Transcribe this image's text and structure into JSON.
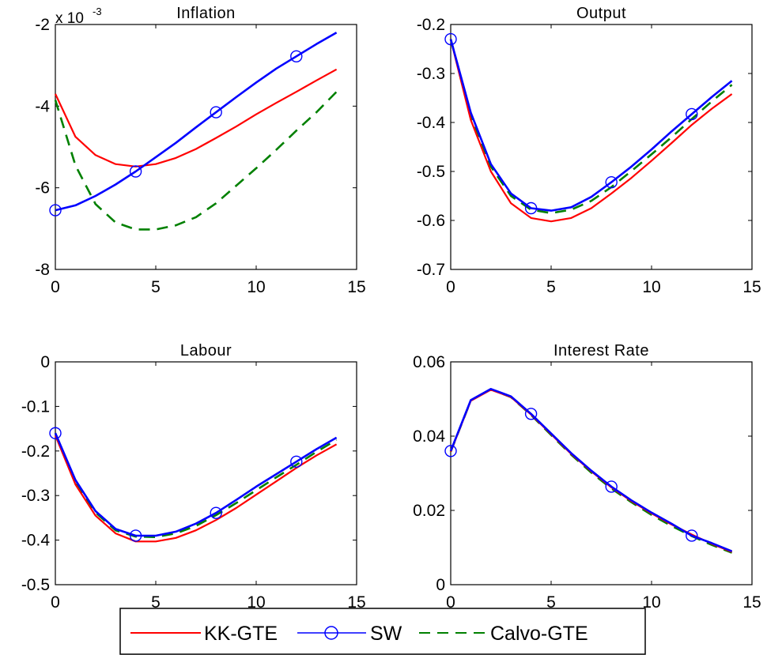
{
  "chart_data": [
    {
      "type": "line",
      "title": "Inflation",
      "exponent_label": {
        "base": "x 10",
        "power": "-3"
      },
      "xlim": [
        0,
        15
      ],
      "ylim": [
        -8,
        -2
      ],
      "xticks": [
        0,
        5,
        10,
        15
      ],
      "yticks": [
        -2,
        -4,
        -6,
        -8
      ],
      "x": [
        0,
        1,
        2,
        3,
        4,
        5,
        6,
        7,
        8,
        9,
        10,
        11,
        12,
        13,
        14
      ],
      "series": [
        {
          "name": "KK-GTE",
          "values": [
            -3.7,
            -4.75,
            -5.2,
            -5.42,
            -5.48,
            -5.42,
            -5.27,
            -5.05,
            -4.78,
            -4.5,
            -4.2,
            -3.92,
            -3.65,
            -3.37,
            -3.1
          ]
        },
        {
          "name": "SW",
          "values": [
            -6.55,
            -6.43,
            -6.2,
            -5.92,
            -5.6,
            -5.25,
            -4.9,
            -4.52,
            -4.15,
            -3.78,
            -3.42,
            -3.08,
            -2.78,
            -2.48,
            -2.2
          ]
        },
        {
          "name": "Calvo-GTE",
          "values": [
            -3.85,
            -5.45,
            -6.4,
            -6.85,
            -7.02,
            -7.02,
            -6.92,
            -6.72,
            -6.38,
            -5.95,
            -5.52,
            -5.07,
            -4.6,
            -4.15,
            -3.65
          ]
        }
      ]
    },
    {
      "type": "line",
      "title": "Output",
      "xlim": [
        0,
        15
      ],
      "ylim": [
        -0.7,
        -0.2
      ],
      "xticks": [
        0,
        5,
        10,
        15
      ],
      "yticks": [
        -0.2,
        -0.3,
        -0.4,
        -0.5,
        -0.6,
        -0.7
      ],
      "x": [
        0,
        1,
        2,
        3,
        4,
        5,
        6,
        7,
        8,
        9,
        10,
        11,
        12,
        13,
        14
      ],
      "series": [
        {
          "name": "KK-GTE",
          "values": [
            -0.23,
            -0.395,
            -0.5,
            -0.565,
            -0.595,
            -0.602,
            -0.595,
            -0.575,
            -0.545,
            -0.513,
            -0.478,
            -0.442,
            -0.405,
            -0.372,
            -0.342
          ]
        },
        {
          "name": "SW",
          "values": [
            -0.23,
            -0.38,
            -0.485,
            -0.545,
            -0.575,
            -0.58,
            -0.573,
            -0.552,
            -0.522,
            -0.49,
            -0.455,
            -0.418,
            -0.383,
            -0.348,
            -0.315
          ]
        },
        {
          "name": "Calvo-GTE",
          "values": [
            -0.23,
            -0.385,
            -0.49,
            -0.55,
            -0.578,
            -0.585,
            -0.578,
            -0.56,
            -0.532,
            -0.499,
            -0.465,
            -0.43,
            -0.393,
            -0.357,
            -0.323
          ]
        }
      ]
    },
    {
      "type": "line",
      "title": "Labour",
      "xlim": [
        0,
        15
      ],
      "ylim": [
        -0.5,
        0
      ],
      "xticks": [
        0,
        5,
        10,
        15
      ],
      "yticks": [
        0,
        -0.1,
        -0.2,
        -0.3,
        -0.4,
        -0.5
      ],
      "x": [
        0,
        1,
        2,
        3,
        4,
        5,
        6,
        7,
        8,
        9,
        10,
        11,
        12,
        13,
        14
      ],
      "series": [
        {
          "name": "KK-GTE",
          "values": [
            -0.165,
            -0.275,
            -0.345,
            -0.385,
            -0.403,
            -0.403,
            -0.395,
            -0.378,
            -0.355,
            -0.328,
            -0.298,
            -0.268,
            -0.238,
            -0.21,
            -0.185
          ]
        },
        {
          "name": "SW",
          "values": [
            -0.16,
            -0.265,
            -0.335,
            -0.375,
            -0.39,
            -0.39,
            -0.381,
            -0.363,
            -0.339,
            -0.31,
            -0.28,
            -0.252,
            -0.224,
            -0.196,
            -0.17
          ]
        },
        {
          "name": "Calvo-GTE",
          "values": [
            -0.16,
            -0.268,
            -0.338,
            -0.378,
            -0.392,
            -0.393,
            -0.385,
            -0.368,
            -0.344,
            -0.317,
            -0.288,
            -0.259,
            -0.231,
            -0.202,
            -0.175
          ]
        }
      ]
    },
    {
      "type": "line",
      "title": "Interest Rate",
      "xlim": [
        0,
        15
      ],
      "ylim": [
        0,
        0.06
      ],
      "xticks": [
        0,
        5,
        10,
        15
      ],
      "yticks": [
        0,
        0.02,
        0.04,
        0.06
      ],
      "x": [
        0,
        1,
        2,
        3,
        4,
        5,
        6,
        7,
        8,
        9,
        10,
        11,
        12,
        13,
        14
      ],
      "series": [
        {
          "name": "KK-GTE",
          "values": [
            0.0358,
            0.0495,
            0.0525,
            0.0505,
            0.0458,
            0.0405,
            0.0352,
            0.0305,
            0.0262,
            0.0225,
            0.0192,
            0.0162,
            0.0135,
            0.011,
            0.0088
          ]
        },
        {
          "name": "SW",
          "values": [
            0.036,
            0.0497,
            0.0527,
            0.0507,
            0.046,
            0.0407,
            0.0354,
            0.0307,
            0.0264,
            0.0227,
            0.0194,
            0.0164,
            0.0132,
            0.0112,
            0.009
          ]
        },
        {
          "name": "Calvo-GTE",
          "values": [
            0.0358,
            0.0496,
            0.0526,
            0.0505,
            0.0457,
            0.0403,
            0.035,
            0.0302,
            0.0259,
            0.0222,
            0.0188,
            0.0158,
            0.0131,
            0.0107,
            0.0086
          ]
        }
      ]
    }
  ],
  "legend": {
    "entries": [
      {
        "label": "KK-GTE",
        "color": "#ff0000",
        "style": "solid",
        "marker": "none"
      },
      {
        "label": "SW",
        "color": "#0000ff",
        "style": "solid",
        "marker": "circle"
      },
      {
        "label": "Calvo-GTE",
        "color": "#008000",
        "style": "dashed",
        "marker": "none"
      }
    ]
  },
  "colors": {
    "KK-GTE": "#ff0000",
    "SW": "#0000ff",
    "Calvo-GTE": "#008000"
  },
  "sw_marker_x": [
    0,
    4,
    8,
    12
  ]
}
